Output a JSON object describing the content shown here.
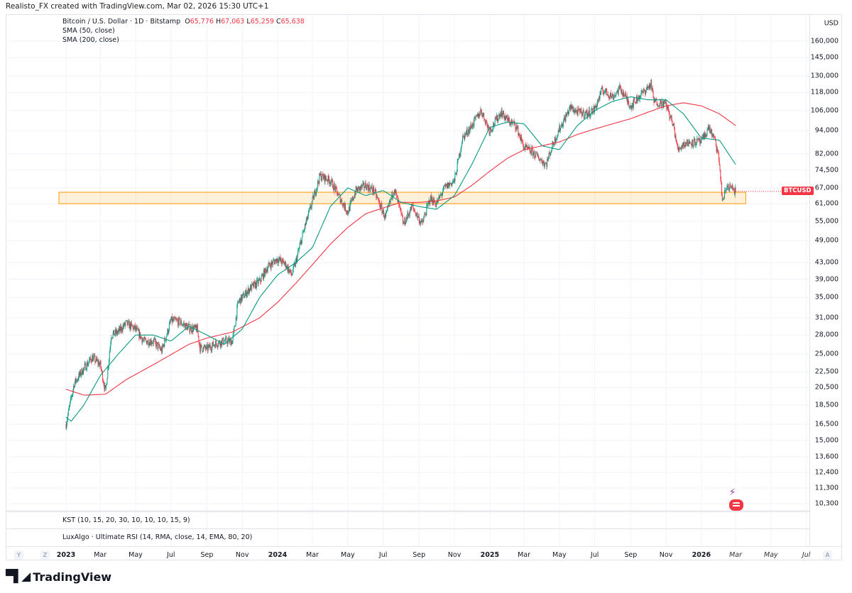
{
  "credit": "Realisto_FX created with TradingView.com, Mar 02, 2026 15:30 UTC+1",
  "legend": {
    "symbol": "Bitcoin / U.S. Dollar · 1D · Bitstamp",
    "o_label": "O",
    "o": "65,776",
    "h_label": "H",
    "h": "67,063",
    "l_label": "L",
    "l": "65,259",
    "c_label": "C",
    "c": "65,638",
    "sma50": "SMA (50, close)",
    "sma200": "SMA (200, close)"
  },
  "currency": "USD",
  "symbol_tag": "BTCUSD",
  "panes": {
    "kst": "KST (10, 15, 20, 30, 10, 10, 10, 15, 9)",
    "rsi": "LuxAlgo · Ultimate RSI (14, RMA, close, 14, EMA, 80, 20)"
  },
  "axis_buttons": {
    "y": "Y",
    "z": "Z",
    "a": "A"
  },
  "logo": "TradingView",
  "colors": {
    "up": "#089981",
    "down": "#f23645",
    "sma50": "#089981",
    "sma200": "#f23645",
    "zone": "#ff9800"
  },
  "chart_data": {
    "type": "candlestick",
    "scale": "log",
    "ylim": [
      10000,
      170000
    ],
    "xlim": [
      "2022-12-20",
      "2026-08-15"
    ],
    "price_ticks": [
      "160,000",
      "145,000",
      "130,000",
      "118,000",
      "106,000",
      "94,000",
      "82,000",
      "74,500",
      "67,000",
      "61,000",
      "55,000",
      "49,000",
      "43,000",
      "39,000",
      "35,000",
      "31,000",
      "28,000",
      "25,000",
      "22,500",
      "20,500",
      "18,500",
      "16,500",
      "15,000",
      "13,600",
      "12,400",
      "11,300",
      "10,300"
    ],
    "time_ticks": [
      {
        "d": "2023-01-01",
        "t": "2023",
        "bold": true
      },
      {
        "d": "2023-03-01",
        "t": "Mar"
      },
      {
        "d": "2023-05-01",
        "t": "May"
      },
      {
        "d": "2023-07-01",
        "t": "Jul"
      },
      {
        "d": "2023-09-01",
        "t": "Sep"
      },
      {
        "d": "2023-11-01",
        "t": "Nov"
      },
      {
        "d": "2024-01-01",
        "t": "2024",
        "bold": true
      },
      {
        "d": "2024-03-01",
        "t": "Mar"
      },
      {
        "d": "2024-05-01",
        "t": "May"
      },
      {
        "d": "2024-07-01",
        "t": "Jul"
      },
      {
        "d": "2024-09-01",
        "t": "Sep"
      },
      {
        "d": "2024-11-01",
        "t": "Nov"
      },
      {
        "d": "2025-01-01",
        "t": "2025",
        "bold": true
      },
      {
        "d": "2025-03-01",
        "t": "Mar"
      },
      {
        "d": "2025-05-01",
        "t": "May"
      },
      {
        "d": "2025-07-01",
        "t": "Jul"
      },
      {
        "d": "2025-09-01",
        "t": "Sep"
      },
      {
        "d": "2025-11-01",
        "t": "Nov"
      },
      {
        "d": "2026-01-01",
        "t": "2026",
        "bold": true
      },
      {
        "d": "2026-03-01",
        "t": "Mar",
        "it": true
      },
      {
        "d": "2026-05-01",
        "t": "May",
        "it": true
      },
      {
        "d": "2026-07-01",
        "t": "Jul",
        "it": true
      }
    ],
    "close_path": [
      [
        "2023-01-01",
        16500
      ],
      [
        "2023-01-15",
        21000
      ],
      [
        "2023-02-01",
        23000
      ],
      [
        "2023-02-15",
        24500
      ],
      [
        "2023-03-01",
        23500
      ],
      [
        "2023-03-10",
        20000
      ],
      [
        "2023-03-20",
        28000
      ],
      [
        "2023-04-01",
        28500
      ],
      [
        "2023-04-15",
        30000
      ],
      [
        "2023-05-01",
        29000
      ],
      [
        "2023-05-15",
        27000
      ],
      [
        "2023-06-01",
        27000
      ],
      [
        "2023-06-15",
        25500
      ],
      [
        "2023-07-01",
        30500
      ],
      [
        "2023-07-15",
        30300
      ],
      [
        "2023-08-01",
        29200
      ],
      [
        "2023-08-15",
        29000
      ],
      [
        "2023-08-20",
        26000
      ],
      [
        "2023-09-01",
        25800
      ],
      [
        "2023-09-15",
        26600
      ],
      [
        "2023-10-01",
        27000
      ],
      [
        "2023-10-15",
        27000
      ],
      [
        "2023-10-25",
        34000
      ],
      [
        "2023-11-01",
        35000
      ],
      [
        "2023-11-15",
        37000
      ],
      [
        "2023-12-01",
        38500
      ],
      [
        "2023-12-15",
        42000
      ],
      [
        "2024-01-01",
        44000
      ],
      [
        "2024-01-15",
        42500
      ],
      [
        "2024-01-25",
        40000
      ],
      [
        "2024-02-01",
        43000
      ],
      [
        "2024-02-15",
        52000
      ],
      [
        "2024-03-01",
        62000
      ],
      [
        "2024-03-14",
        72000
      ],
      [
        "2024-04-01",
        70000
      ],
      [
        "2024-04-15",
        64000
      ],
      [
        "2024-05-01",
        58000
      ],
      [
        "2024-05-15",
        66000
      ],
      [
        "2024-06-01",
        68000
      ],
      [
        "2024-06-15",
        66000
      ],
      [
        "2024-07-05",
        56000
      ],
      [
        "2024-07-20",
        67000
      ],
      [
        "2024-08-05",
        54000
      ],
      [
        "2024-08-20",
        60000
      ],
      [
        "2024-09-06",
        54000
      ],
      [
        "2024-09-20",
        63000
      ],
      [
        "2024-10-01",
        61000
      ],
      [
        "2024-10-15",
        67000
      ],
      [
        "2024-11-01",
        70000
      ],
      [
        "2024-11-15",
        90000
      ],
      [
        "2024-12-01",
        97000
      ],
      [
        "2024-12-17",
        106000
      ],
      [
        "2025-01-01",
        94000
      ],
      [
        "2025-01-20",
        105000
      ],
      [
        "2025-02-01",
        100000
      ],
      [
        "2025-02-15",
        97000
      ],
      [
        "2025-03-01",
        85000
      ],
      [
        "2025-03-15",
        83000
      ],
      [
        "2025-04-08",
        77000
      ],
      [
        "2025-04-20",
        87000
      ],
      [
        "2025-05-01",
        95000
      ],
      [
        "2025-05-20",
        108000
      ],
      [
        "2025-06-01",
        105000
      ],
      [
        "2025-06-20",
        104000
      ],
      [
        "2025-07-01",
        107000
      ],
      [
        "2025-07-14",
        120000
      ],
      [
        "2025-08-01",
        115000
      ],
      [
        "2025-08-14",
        121000
      ],
      [
        "2025-09-01",
        109000
      ],
      [
        "2025-09-15",
        115000
      ],
      [
        "2025-10-06",
        124000
      ],
      [
        "2025-10-11",
        112000
      ],
      [
        "2025-11-01",
        110000
      ],
      [
        "2025-11-15",
        95000
      ],
      [
        "2025-11-21",
        84000
      ],
      [
        "2025-12-01",
        87000
      ],
      [
        "2025-12-15",
        88000
      ],
      [
        "2026-01-01",
        88000
      ],
      [
        "2026-01-14",
        96000
      ],
      [
        "2026-01-25",
        88000
      ],
      [
        "2026-02-01",
        78000
      ],
      [
        "2026-02-06",
        62000
      ],
      [
        "2026-02-15",
        68000
      ],
      [
        "2026-03-01",
        65638
      ]
    ],
    "sma50": [
      [
        "2023-01-01",
        17200
      ],
      [
        "2023-01-10",
        16800
      ],
      [
        "2023-02-01",
        18500
      ],
      [
        "2023-03-01",
        22000
      ],
      [
        "2023-04-01",
        25000
      ],
      [
        "2023-05-01",
        28000
      ],
      [
        "2023-06-01",
        28000
      ],
      [
        "2023-07-01",
        27000
      ],
      [
        "2023-08-01",
        29500
      ],
      [
        "2023-09-01",
        28000
      ],
      [
        "2023-10-01",
        26500
      ],
      [
        "2023-11-01",
        29000
      ],
      [
        "2023-12-01",
        35000
      ],
      [
        "2024-01-01",
        40000
      ],
      [
        "2024-02-01",
        43000
      ],
      [
        "2024-03-01",
        47000
      ],
      [
        "2024-04-01",
        60000
      ],
      [
        "2024-05-01",
        67000
      ],
      [
        "2024-06-01",
        64000
      ],
      [
        "2024-07-01",
        66000
      ],
      [
        "2024-08-01",
        61500
      ],
      [
        "2024-09-01",
        60000
      ],
      [
        "2024-10-01",
        59000
      ],
      [
        "2024-11-01",
        64000
      ],
      [
        "2024-12-01",
        77000
      ],
      [
        "2025-01-01",
        96000
      ],
      [
        "2025-02-01",
        99000
      ],
      [
        "2025-03-01",
        98000
      ],
      [
        "2025-04-01",
        86000
      ],
      [
        "2025-05-01",
        84000
      ],
      [
        "2025-06-01",
        97000
      ],
      [
        "2025-07-01",
        106000
      ],
      [
        "2025-08-01",
        112000
      ],
      [
        "2025-09-01",
        115000
      ],
      [
        "2025-10-01",
        113000
      ],
      [
        "2025-11-01",
        113000
      ],
      [
        "2025-12-01",
        104000
      ],
      [
        "2026-01-01",
        90000
      ],
      [
        "2026-02-01",
        89000
      ],
      [
        "2026-03-01",
        77000
      ]
    ],
    "sma200": [
      [
        "2023-01-01",
        20300
      ],
      [
        "2023-02-01",
        19600
      ],
      [
        "2023-03-10",
        19700
      ],
      [
        "2023-04-15",
        21500
      ],
      [
        "2023-06-01",
        23500
      ],
      [
        "2023-08-01",
        26500
      ],
      [
        "2023-09-01",
        27500
      ],
      [
        "2023-10-15",
        28500
      ],
      [
        "2023-12-01",
        31000
      ],
      [
        "2024-01-01",
        34000
      ],
      [
        "2024-02-01",
        38000
      ],
      [
        "2024-03-01",
        42500
      ],
      [
        "2024-04-01",
        48000
      ],
      [
        "2024-05-01",
        53000
      ],
      [
        "2024-06-01",
        57500
      ],
      [
        "2024-07-01",
        59500
      ],
      [
        "2024-08-01",
        61500
      ],
      [
        "2024-09-01",
        61500
      ],
      [
        "2024-10-01",
        62000
      ],
      [
        "2024-11-01",
        63500
      ],
      [
        "2024-12-01",
        68000
      ],
      [
        "2025-01-01",
        74000
      ],
      [
        "2025-02-01",
        80000
      ],
      [
        "2025-03-01",
        84000
      ],
      [
        "2025-04-01",
        86000
      ],
      [
        "2025-05-01",
        88000
      ],
      [
        "2025-06-01",
        92000
      ],
      [
        "2025-07-01",
        95000
      ],
      [
        "2025-08-01",
        98000
      ],
      [
        "2025-09-01",
        101000
      ],
      [
        "2025-10-01",
        105000
      ],
      [
        "2025-11-01",
        109000
      ],
      [
        "2025-12-01",
        111000
      ],
      [
        "2026-01-01",
        109000
      ],
      [
        "2026-02-01",
        104000
      ],
      [
        "2026-03-01",
        97000
      ]
    ],
    "zone": {
      "low": 61000,
      "high": 65300,
      "from": "2023-01-01",
      "to": "2026-03-10"
    },
    "last_price": 65638
  }
}
